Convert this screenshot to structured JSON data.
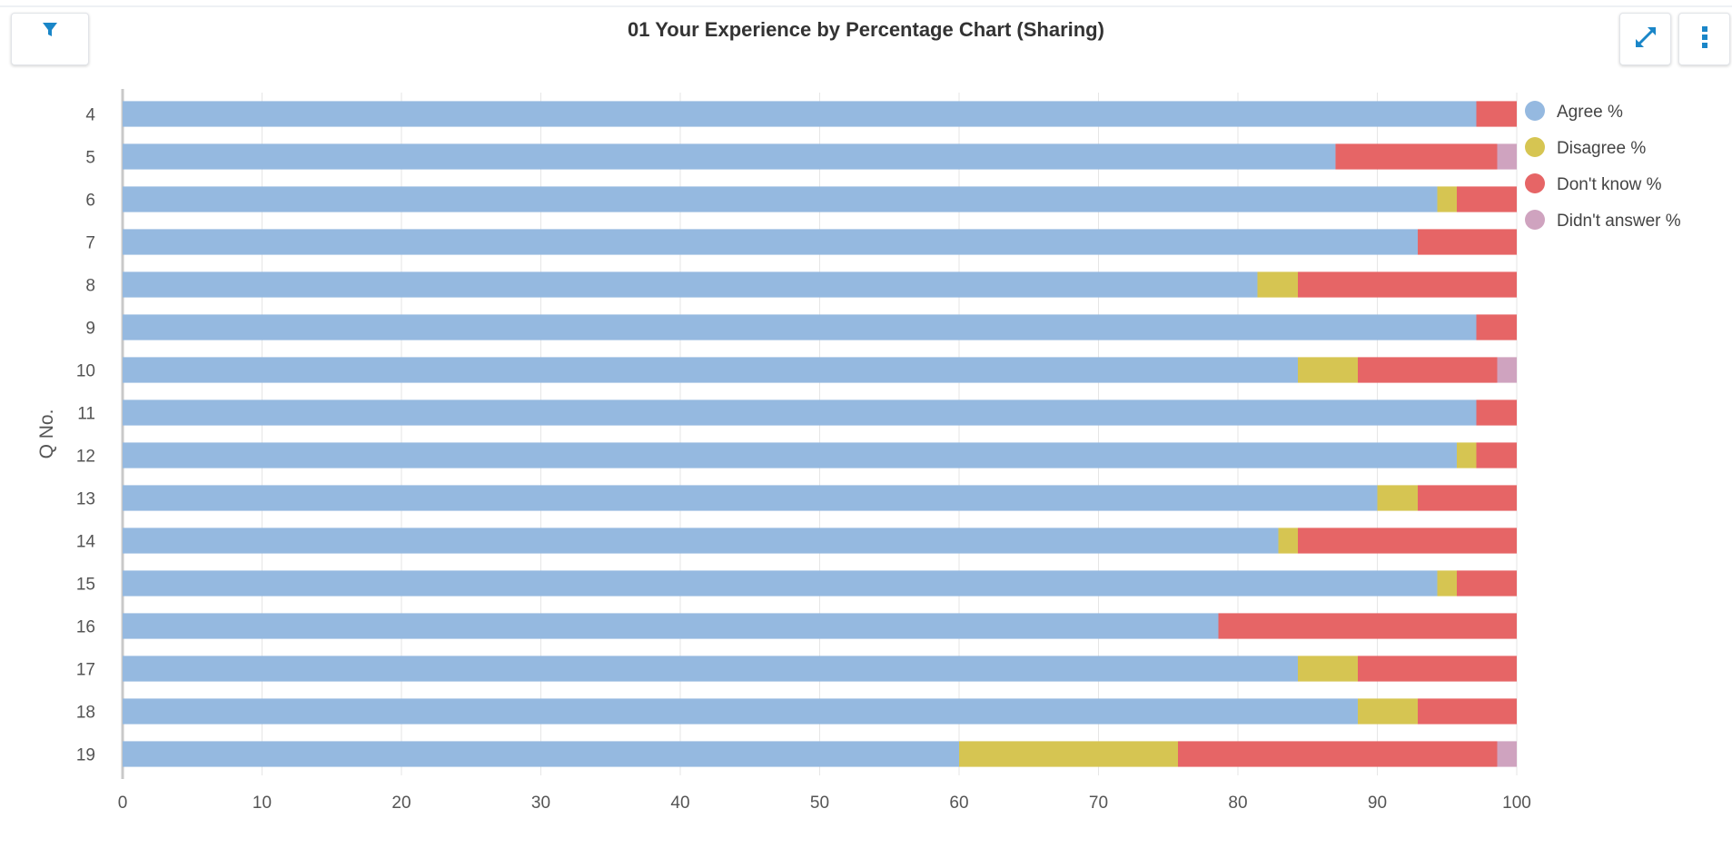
{
  "toolbar": {
    "filter_icon": "filter-icon",
    "expand_icon": "expand-icon",
    "more_icon": "more-vertical-icon",
    "accent_color": "#1a86c8"
  },
  "chart_data": {
    "type": "bar",
    "orientation": "horizontal",
    "stacked": true,
    "title": "01 Your Experience by Percentage Chart (Sharing)",
    "ylabel": "Q No.",
    "xlabel": "",
    "xlim": [
      0,
      100
    ],
    "x_ticks": [
      "0",
      "10",
      "20",
      "30",
      "40",
      "50",
      "60",
      "70",
      "80",
      "90",
      "100"
    ],
    "grid": true,
    "legend_position": "right",
    "categories": [
      "4",
      "5",
      "6",
      "7",
      "8",
      "9",
      "10",
      "11",
      "12",
      "13",
      "14",
      "15",
      "16",
      "17",
      "18",
      "19"
    ],
    "series": [
      {
        "name": "Agree %",
        "color": "#95b9e0",
        "values": [
          97.1,
          87.0,
          94.3,
          92.9,
          81.4,
          97.1,
          84.3,
          97.1,
          95.7,
          90.0,
          82.9,
          94.3,
          78.6,
          84.3,
          88.6,
          60.0
        ]
      },
      {
        "name": "Disagree %",
        "color": "#d6c552",
        "values": [
          0,
          0,
          1.4,
          0,
          2.9,
          0,
          4.3,
          0,
          1.4,
          2.9,
          1.4,
          1.4,
          0,
          4.3,
          4.3,
          15.7
        ]
      },
      {
        "name": "Don't know %",
        "color": "#e66566",
        "values": [
          2.9,
          11.6,
          4.3,
          7.1,
          15.7,
          2.9,
          10.0,
          2.9,
          2.9,
          7.1,
          15.7,
          4.3,
          21.4,
          11.4,
          7.1,
          22.9
        ]
      },
      {
        "name": "Didn't answer %",
        "color": "#cfa3bf",
        "values": [
          0,
          1.4,
          0,
          0,
          0,
          0,
          1.4,
          0,
          0,
          0,
          0,
          0,
          0,
          0,
          0,
          1.4
        ]
      }
    ]
  }
}
